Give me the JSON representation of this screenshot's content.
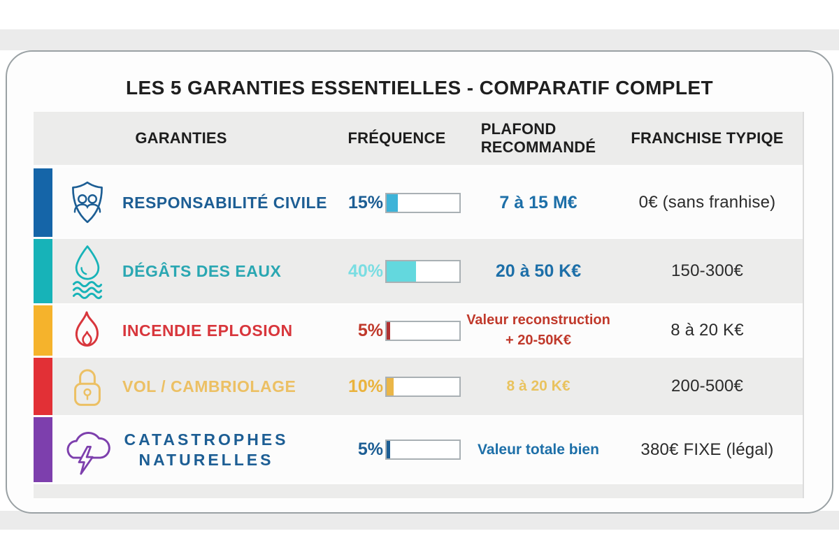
{
  "title": "LES 5 GARANTIES ESSENTIELLES - COMPARATIF COMPLET",
  "colors": {
    "band": "#ebebeb",
    "card_border": "#9aa1a4",
    "header_bg": "#ececeb",
    "row_alt_bg": "#ececeb"
  },
  "table": {
    "headers": {
      "garanties": "GARANTIES",
      "frequence": "FRÉQUENCE",
      "plafond_line1": "PLAFOND",
      "plafond_line2": "RECOMMANDÉ",
      "franchise": "FRANCHISE TYPIQE"
    },
    "rows": [
      {
        "name_line1": "RESPONSABILITÉ CIVILE",
        "name_line2": "",
        "icon": "shield-people-icon",
        "accent": "#1565a8",
        "label_color": "#1d5e94",
        "frequency": {
          "display": "15%",
          "percent": 15,
          "fill_color": "#3eb3d8",
          "text_color": "#1d5e94"
        },
        "plafond": {
          "line1": "7 à 15 M€",
          "line2": "",
          "color": "#1d6fa8"
        },
        "franchise": "0€ (sans franhise)"
      },
      {
        "name_line1": "DÉGÂTS DES EAUX",
        "name_line2": "",
        "icon": "water-drop-icon",
        "accent": "#17b3b8",
        "label_color": "#2aa7b2",
        "frequency": {
          "display": "40%",
          "percent": 40,
          "fill_color": "#63d8de",
          "text_color": "#7adde2"
        },
        "plafond": {
          "line1": "20 à 50 K€",
          "line2": "",
          "color": "#1d6fa8"
        },
        "franchise": "150-300€"
      },
      {
        "name_line1": "INCENDIE EPLOSION",
        "name_line2": "",
        "icon": "flame-icon",
        "accent": "#f5b32c",
        "label_color": "#d8363c",
        "frequency": {
          "display": "5%",
          "percent": 5,
          "fill_color": "#b03232",
          "text_color": "#c0392b"
        },
        "plafond": {
          "line1": "Valeur reconstruction",
          "line2": "+ 20-50K€",
          "color": "#c0392b"
        },
        "franchise": "8 à 20 K€"
      },
      {
        "name_line1": "VOL / CAMBRIOLAGE",
        "name_line2": "",
        "icon": "padlock-icon",
        "accent": "#e23036",
        "label_color": "#ecc064",
        "frequency": {
          "display": "10%",
          "percent": 10,
          "fill_color": "#eab648",
          "text_color": "#eab33d"
        },
        "plafond": {
          "line1": "8 à 20 K€",
          "line2": "",
          "color": "#e9c35f"
        },
        "franchise": "200-500€"
      },
      {
        "name_line1": "CATASTROPHES",
        "name_line2": "NATURELLES",
        "icon": "storm-cloud-icon",
        "accent": "#7d3fad",
        "label_color": "#1d5e94",
        "frequency": {
          "display": "5%",
          "percent": 5,
          "fill_color": "#1d5e94",
          "text_color": "#1d5e94"
        },
        "plafond": {
          "line1": "Valeur totale bien",
          "line2": "",
          "color": "#1d6fa8"
        },
        "franchise": "380€ FIXE (légal)"
      }
    ]
  }
}
